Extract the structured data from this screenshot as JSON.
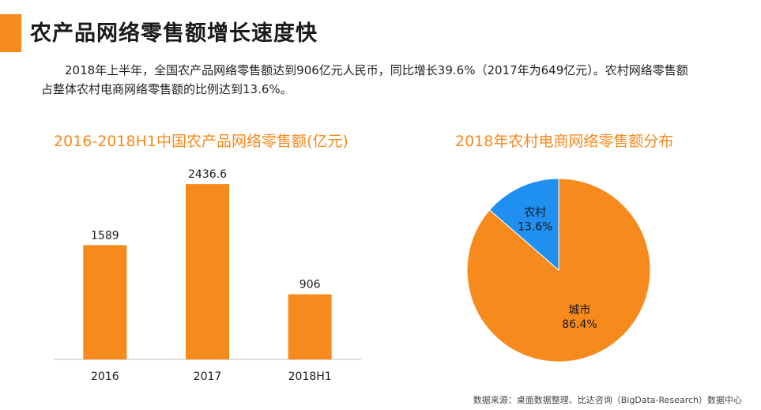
{
  "page": {
    "title": "农产品网络零售额增长速度快",
    "intro_line1": "2018年上半年，全国农产品网络零售额达到906亿元人民币，同比增长39.6%（2017年为649亿元）。农村网络零售额",
    "intro_line2": "占整体农村电商网络零售额的比例达到13.6%。",
    "source": "数据来源：桌面数据整理、比达咨询（BigData-Research）数据中心",
    "accent_color": "#f78a1d"
  },
  "chart_data": [
    {
      "type": "bar",
      "title": "2016-2018H1中国农产品网络零售额(亿元)",
      "categories": [
        "2016",
        "2017",
        "2018H1"
      ],
      "values": [
        1589,
        2436.6,
        906
      ],
      "labels": [
        "1589",
        "2436.6",
        "906"
      ],
      "ylim": [
        0,
        2800
      ],
      "grid": false,
      "bar_color": "#f78a1d"
    },
    {
      "type": "pie",
      "title": "2018年农村电商网络零售额分布",
      "slices": [
        {
          "label": "农村",
          "value": 13.6,
          "display": "13.6%",
          "color": "#1f8ff0"
        },
        {
          "label": "城市",
          "value": 86.4,
          "display": "86.4%",
          "color": "#f78a1d"
        }
      ]
    }
  ]
}
